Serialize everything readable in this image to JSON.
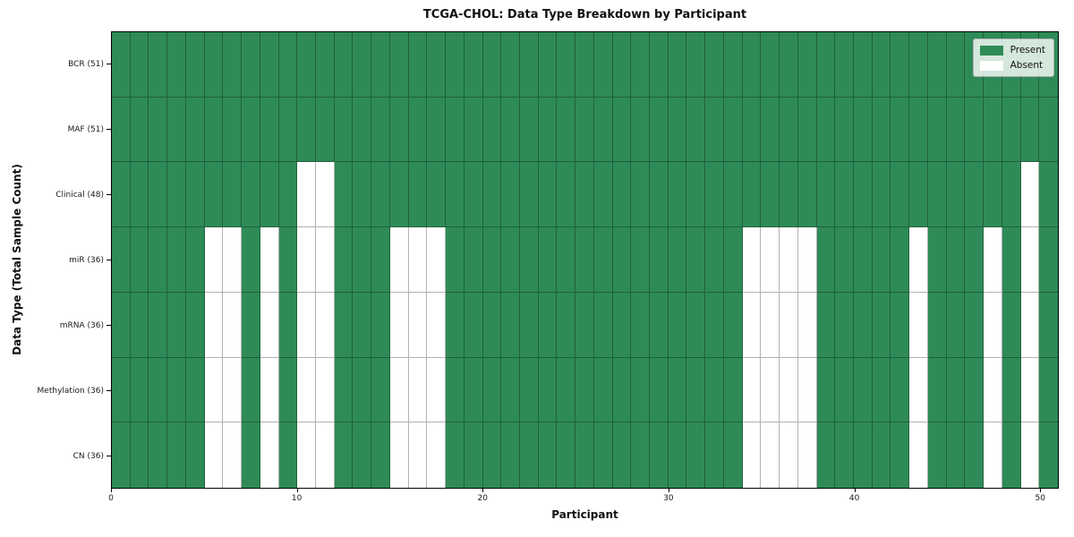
{
  "chart_data": {
    "type": "heatmap",
    "title": "TCGA-CHOL: Data Type Breakdown by Participant",
    "xlabel": "Participant",
    "ylabel": "Data Type (Total Sample Count)",
    "x_ticks": [
      0,
      10,
      20,
      30,
      40,
      50
    ],
    "x_range": [
      0,
      51
    ],
    "n_participants": 51,
    "grid": true,
    "legend_position": "upper right",
    "colors": {
      "present": "#2e8b57",
      "absent": "#ffffff"
    },
    "legend": [
      {
        "label": "Present",
        "key": "present"
      },
      {
        "label": "Absent",
        "key": "absent"
      }
    ],
    "rows": [
      {
        "label": "BCR (51)",
        "total": 51,
        "absent": []
      },
      {
        "label": "MAF (51)",
        "total": 51,
        "absent": []
      },
      {
        "label": "Clinical (48)",
        "total": 48,
        "absent": [
          10,
          11,
          49
        ]
      },
      {
        "label": "miR (36)",
        "total": 36,
        "absent": [
          5,
          6,
          8,
          10,
          11,
          15,
          16,
          17,
          34,
          35,
          36,
          37,
          43,
          47,
          49
        ]
      },
      {
        "label": "mRNA (36)",
        "total": 36,
        "absent": [
          5,
          6,
          8,
          10,
          11,
          15,
          16,
          17,
          34,
          35,
          36,
          37,
          43,
          47,
          49
        ]
      },
      {
        "label": "Methylation (36)",
        "total": 36,
        "absent": [
          5,
          6,
          8,
          10,
          11,
          15,
          16,
          17,
          34,
          35,
          36,
          37,
          43,
          47,
          49
        ]
      },
      {
        "label": "CN (36)",
        "total": 36,
        "absent": [
          5,
          6,
          8,
          10,
          11,
          15,
          16,
          17,
          34,
          35,
          36,
          37,
          43,
          47,
          49
        ]
      }
    ]
  }
}
